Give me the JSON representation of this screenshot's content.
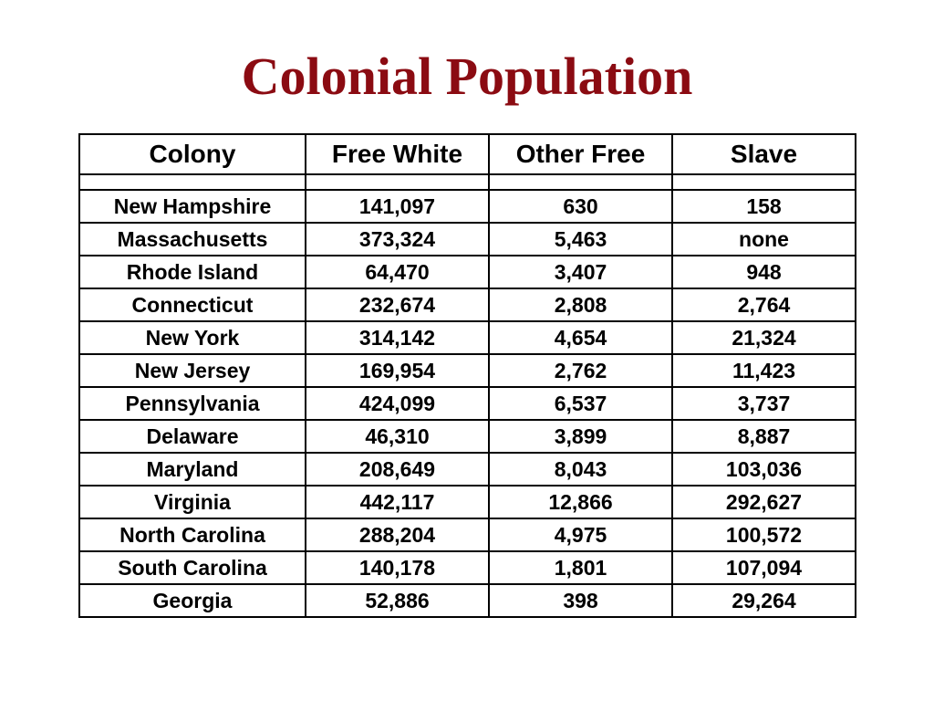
{
  "title": "Colonial Population",
  "table": {
    "headers": [
      "Colony",
      "Free White",
      "Other Free",
      "Slave"
    ],
    "rows": [
      [
        "New Hampshire",
        "141,097",
        "630",
        "158"
      ],
      [
        "Massachusetts",
        "373,324",
        "5,463",
        "none"
      ],
      [
        "Rhode Island",
        "64,470",
        "3,407",
        "948"
      ],
      [
        "Connecticut",
        "232,674",
        "2,808",
        "2,764"
      ],
      [
        "New York",
        "314,142",
        "4,654",
        "21,324"
      ],
      [
        "New Jersey",
        "169,954",
        "2,762",
        "11,423"
      ],
      [
        "Pennsylvania",
        "424,099",
        "6,537",
        "3,737"
      ],
      [
        "Delaware",
        "46,310",
        "3,899",
        "8,887"
      ],
      [
        "Maryland",
        "208,649",
        "8,043",
        "103,036"
      ],
      [
        "Virginia",
        "442,117",
        "12,866",
        "292,627"
      ],
      [
        "North Carolina",
        "288,204",
        "4,975",
        "100,572"
      ],
      [
        "South Carolina",
        "140,178",
        "1,801",
        "107,094"
      ],
      [
        "Georgia",
        "52,886",
        "398",
        "29,264"
      ]
    ]
  },
  "colors": {
    "title": "#8b0b12",
    "text": "#000000",
    "background": "#ffffff"
  }
}
